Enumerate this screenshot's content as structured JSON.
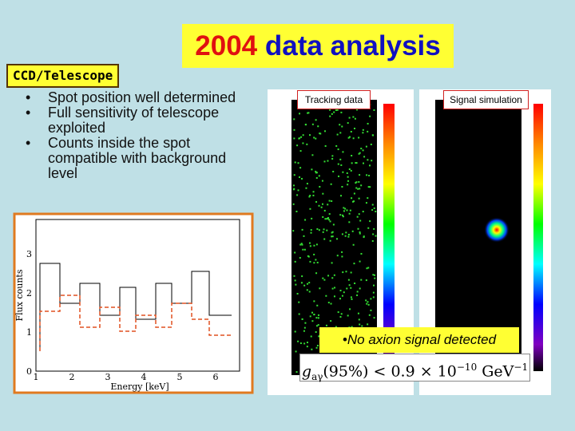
{
  "slide": {
    "title": {
      "year": "2004",
      "rest": "data analysis"
    },
    "section": "CCD/Telescope",
    "bullets": [
      "Spot position well determined",
      "Full sensitivity of telescope exploited",
      "Counts inside the spot compatible with background level"
    ],
    "histogram": {
      "xlabel": "Energy [keV]",
      "ylabel": "Flux counts",
      "xticks": [
        "1",
        "2",
        "3",
        "4",
        "5",
        "6"
      ],
      "yticks": [
        "0",
        "1",
        "2",
        "3"
      ]
    },
    "images": {
      "tracking": "Tracking data",
      "simulation": "Signal simulation"
    },
    "conclusion": "•No axion signal detected",
    "formula": {
      "symbol": "g",
      "sub": "aγ",
      "cl": "(95%)",
      "relation": "<",
      "mantissa": "0.9 × 10",
      "exponent": "−10",
      "unit": "GeV",
      "unit_exponent": "−1"
    }
  }
}
